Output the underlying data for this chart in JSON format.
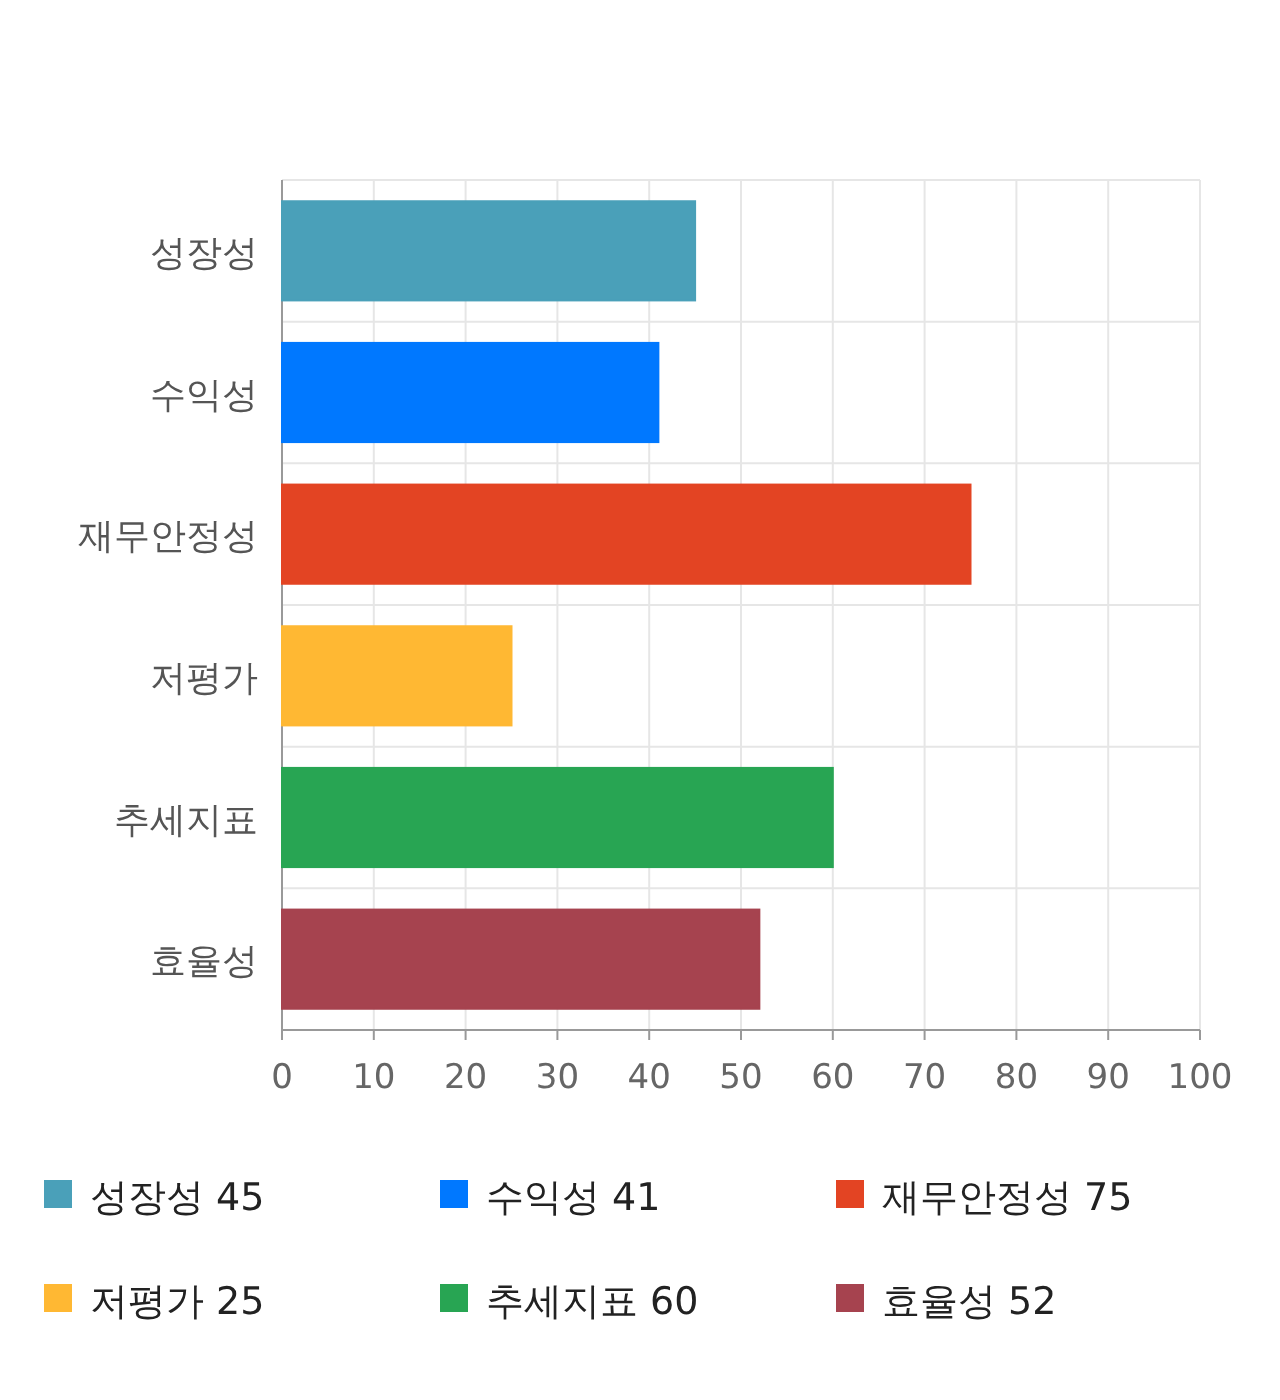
{
  "chart_data": {
    "type": "bar",
    "orientation": "horizontal",
    "categories": [
      "성장성",
      "수익성",
      "재무안정성",
      "저평가",
      "추세지표",
      "효율성"
    ],
    "series": [
      {
        "name": "성장성 45",
        "color": "#4aa0b9",
        "values": [
          45,
          null,
          null,
          null,
          null,
          null
        ]
      },
      {
        "name": "수익성 41",
        "color": "#0078ff",
        "values": [
          null,
          41,
          null,
          null,
          null,
          null
        ]
      },
      {
        "name": "재무안정성 75",
        "color": "#e34423",
        "values": [
          null,
          null,
          75,
          null,
          null,
          null
        ]
      },
      {
        "name": "저평가 25",
        "color": "#ffb833",
        "values": [
          null,
          null,
          null,
          25,
          null,
          null
        ]
      },
      {
        "name": "추세지표 60",
        "color": "#28a553",
        "values": [
          null,
          null,
          null,
          null,
          60,
          null
        ]
      },
      {
        "name": "효율성 52",
        "color": "#a6434f",
        "values": [
          null,
          null,
          null,
          null,
          null,
          52
        ]
      }
    ],
    "xlim": [
      0,
      100
    ],
    "xticks": [
      0,
      10,
      20,
      30,
      40,
      50,
      60,
      70,
      80,
      90,
      100
    ],
    "grid": true,
    "legend": "bottom"
  }
}
